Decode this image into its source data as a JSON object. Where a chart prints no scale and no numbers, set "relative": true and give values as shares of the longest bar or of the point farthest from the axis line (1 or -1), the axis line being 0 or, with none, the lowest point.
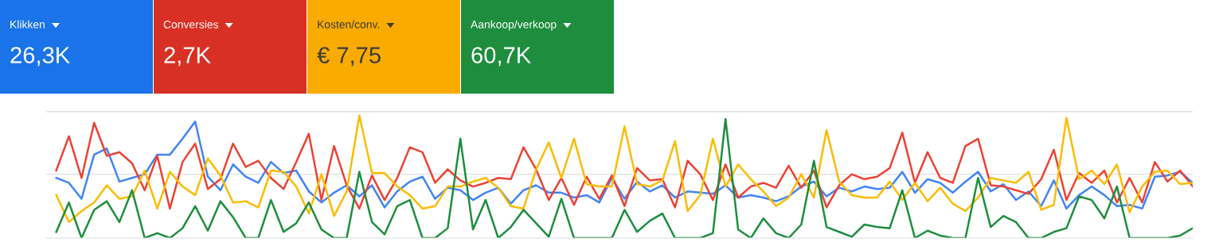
{
  "chart_data": [
    {
      "type": "other",
      "categories": [
        "Klikken",
        "Conversies",
        "Kosten/conv.",
        "Aankoop/verkoop"
      ],
      "annotations": [
        "26,3K",
        "2,7K",
        "€ 7,75",
        "60,7K"
      ],
      "colors": [
        "#1a73e8",
        "#d93025",
        "#f9ab00",
        "#1e8e3e"
      ]
    },
    {
      "type": "line",
      "relative": true,
      "line_style": "solid",
      "ref_lines": [
        {
          "axis": "y",
          "value": 0.52,
          "color": "#e0e0e0"
        },
        {
          "axis": "y",
          "value": 1.03,
          "color": "#e0e0e0"
        }
      ],
      "categories": [
        null,
        null,
        null,
        null,
        null,
        null,
        null,
        null,
        null,
        null,
        null,
        null,
        null,
        null,
        null,
        null,
        null,
        null,
        null,
        null,
        null,
        null,
        null,
        null,
        null,
        null,
        null,
        null,
        null,
        null,
        null,
        null,
        null,
        null,
        null,
        null,
        null,
        null,
        null,
        null,
        null,
        null,
        null,
        null,
        null,
        null,
        null,
        null,
        null,
        null,
        null,
        null,
        null,
        null,
        null,
        null,
        null,
        null,
        null,
        null,
        null,
        null,
        null,
        null,
        null,
        null,
        null,
        null,
        null,
        null,
        null,
        null,
        null,
        null,
        null,
        null,
        null,
        null,
        null,
        null,
        null,
        null,
        null,
        null,
        null,
        null,
        null,
        null,
        null,
        null,
        null
      ],
      "series": [
        {
          "color": "#4285f4",
          "values": [
            0.49,
            0.45,
            0.32,
            0.68,
            0.73,
            0.46,
            0.49,
            0.52,
            0.68,
            0.68,
            0.81,
            0.95,
            0.5,
            0.39,
            0.6,
            0.5,
            0.45,
            0.62,
            0.53,
            0.55,
            0.38,
            0.29,
            0.37,
            0.43,
            0.34,
            0.43,
            0.25,
            0.38,
            0.46,
            0.5,
            0.32,
            0.41,
            0.39,
            0.31,
            0.37,
            0.41,
            0.28,
            0.39,
            0.43,
            0.37,
            0.37,
            0.33,
            0.35,
            0.29,
            0.49,
            0.32,
            0.46,
            0.38,
            0.43,
            0.33,
            0.38,
            0.37,
            0.36,
            0.43,
            0.33,
            0.35,
            0.33,
            0.3,
            0.34,
            0.42,
            0.46,
            0.34,
            0.41,
            0.38,
            0.42,
            0.4,
            0.41,
            0.54,
            0.37,
            0.48,
            0.45,
            0.37,
            0.46,
            0.54,
            0.38,
            0.44,
            0.31,
            0.38,
            0.26,
            0.47,
            0.24,
            0.35,
            0.42,
            0.35,
            0.26,
            0.27,
            0.24,
            0.5,
            0.51,
            0.54,
            0.45
          ]
        },
        {
          "color": "#ea4335",
          "values": [
            0.55,
            0.83,
            0.49,
            0.94,
            0.67,
            0.7,
            0.61,
            0.39,
            0.67,
            0.24,
            0.62,
            0.77,
            0.4,
            0.48,
            0.77,
            0.58,
            0.63,
            0.49,
            0.4,
            0.62,
            0.85,
            0.31,
            0.75,
            0.43,
            0.24,
            0.51,
            0.31,
            0.49,
            0.74,
            0.7,
            0.45,
            0.56,
            0.47,
            0.42,
            0.45,
            0.49,
            0.48,
            0.74,
            0.56,
            0.31,
            0.49,
            0.27,
            0.5,
            0.32,
            0.51,
            0.26,
            0.57,
            0.47,
            0.48,
            0.25,
            0.63,
            0.52,
            0.31,
            0.6,
            0.33,
            0.42,
            0.45,
            0.41,
            0.59,
            0.41,
            0.55,
            0.25,
            0.43,
            0.52,
            0.48,
            0.5,
            0.57,
            0.86,
            0.45,
            0.7,
            0.49,
            0.45,
            0.75,
            0.81,
            0.43,
            0.42,
            0.39,
            0.36,
            0.48,
            0.72,
            0.31,
            0.53,
            0.45,
            0.55,
            0.29,
            0.49,
            0.29,
            0.62,
            0.46,
            0.55,
            0.42
          ]
        },
        {
          "color": "#fbbc04",
          "values": [
            0.35,
            0.13,
            0.22,
            0.29,
            0.43,
            0.32,
            0.34,
            0.55,
            0.24,
            0.54,
            0.42,
            0.35,
            0.65,
            0.51,
            0.29,
            0.3,
            0.25,
            0.55,
            0.54,
            0.42,
            0.2,
            0.52,
            0.18,
            0.38,
            1.0,
            0.53,
            0.53,
            0.42,
            0.35,
            0.24,
            0.26,
            0.42,
            0.42,
            0.46,
            0.49,
            0.41,
            0.26,
            0.24,
            0.56,
            0.78,
            0.49,
            0.81,
            0.44,
            0.42,
            0.42,
            0.91,
            0.44,
            0.42,
            0.47,
            0.79,
            0.22,
            0.35,
            0.81,
            0.42,
            0.6,
            0.48,
            0.38,
            0.26,
            0.33,
            0.52,
            0.33,
            0.88,
            0.46,
            0.35,
            0.33,
            0.33,
            0.46,
            0.31,
            0.45,
            0.3,
            0.41,
            0.28,
            0.22,
            0.33,
            0.49,
            0.47,
            0.45,
            0.54,
            0.23,
            0.27,
            0.98,
            0.48,
            0.55,
            0.44,
            0.6,
            0.21,
            0.42,
            0.54,
            0.55,
            0.44,
            0.45
          ]
        },
        {
          "color": "#1e8e3e",
          "values": [
            0.05,
            0.29,
            0,
            0.23,
            0.3,
            0.13,
            0.39,
            0,
            0.04,
            0,
            0.08,
            0.26,
            0.06,
            0.3,
            0.17,
            0,
            0,
            0.31,
            0.05,
            0.12,
            0.29,
            0.07,
            0,
            0,
            0.54,
            0.13,
            0.03,
            0.26,
            0.31,
            0,
            0,
            0.08,
            0.81,
            0.07,
            0.31,
            0,
            0.09,
            0.23,
            0.12,
            0.01,
            0.32,
            0,
            0,
            0,
            0,
            0.23,
            0.05,
            0.14,
            0.2,
            0,
            0,
            0,
            0.04,
            0.97,
            0.07,
            0,
            0.16,
            0.04,
            0,
            0.11,
            0.63,
            0.09,
            0.05,
            0.01,
            0.11,
            0.09,
            0.08,
            0.39,
            0,
            0.06,
            0.02,
            0,
            0,
            0.49,
            0.09,
            0.18,
            0.13,
            0,
            0,
            0.05,
            0.08,
            0.34,
            0.31,
            0.16,
            0.42,
            0,
            0,
            0,
            0,
            0.02,
            0.08
          ]
        }
      ]
    }
  ]
}
